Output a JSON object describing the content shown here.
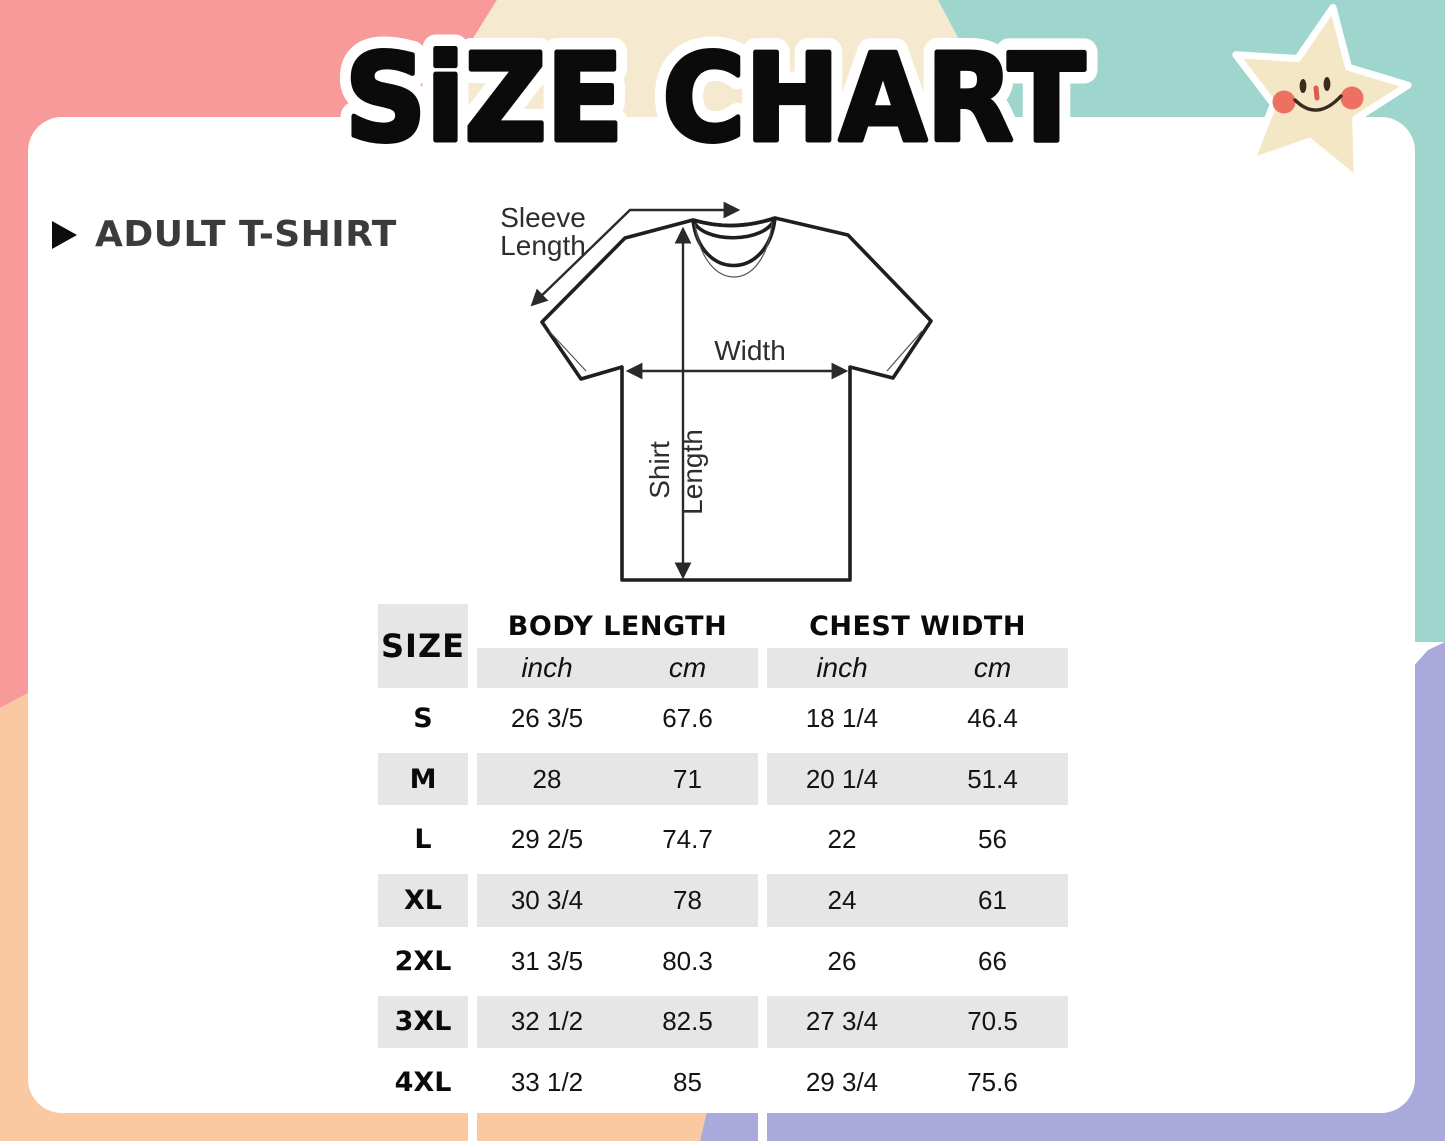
{
  "page_title": "SiZE CHART",
  "section": {
    "label": "ADULT T-SHIRT"
  },
  "diagram": {
    "sleeve_line1": "Sleeve",
    "sleeve_line2": "Length",
    "width_label": "Width",
    "shirt_line1": "Shirt",
    "shirt_line2": "Length"
  },
  "table": {
    "size_header": "SIZE",
    "group_headers": [
      "BODY LENGTH",
      "CHEST WIDTH"
    ],
    "unit_headers": [
      "inch",
      "cm",
      "inch",
      "cm"
    ],
    "striped_rows": [
      1,
      3,
      5
    ]
  },
  "chart_data": {
    "type": "table",
    "title": "SiZE CHART",
    "section": "ADULT T-SHIRT",
    "columns": [
      "SIZE",
      "BODY LENGTH inch",
      "BODY LENGTH cm",
      "CHEST WIDTH inch",
      "CHEST WIDTH cm"
    ],
    "rows": [
      [
        "S",
        "26 3/5",
        "67.6",
        "18 1/4",
        "46.4"
      ],
      [
        "M",
        "28",
        "71",
        "20 1/4",
        "51.4"
      ],
      [
        "L",
        "29 2/5",
        "74.7",
        "22",
        "56"
      ],
      [
        "XL",
        "30 3/4",
        "78",
        "24",
        "61"
      ],
      [
        "2XL",
        "31 3/5",
        "80.3",
        "26",
        "66"
      ],
      [
        "3XL",
        "32 1/2",
        "82.5",
        "27 3/4",
        "70.5"
      ],
      [
        "4XL",
        "33 1/2",
        "85",
        "29 3/4",
        "75.6"
      ]
    ]
  },
  "icons": {
    "star_face": "smiling-star-icon",
    "bullet": "right-triangle-icon"
  },
  "colors": {
    "background_pink": "#f8999a",
    "background_cream": "#f5ead0",
    "background_teal": "#9ed6cd",
    "background_peach": "#fbc9a1",
    "background_lavender": "#a9a9dc",
    "card_white": "#ffffff",
    "row_shade_gray": "#e6e6e6",
    "title_black": "#0b0b0b",
    "heading_charcoal": "#3b3b3b",
    "star_cream": "#f3e7c6",
    "star_cheek_coral": "#ed7061",
    "diagram_line_dark": "#2a2a2a"
  }
}
